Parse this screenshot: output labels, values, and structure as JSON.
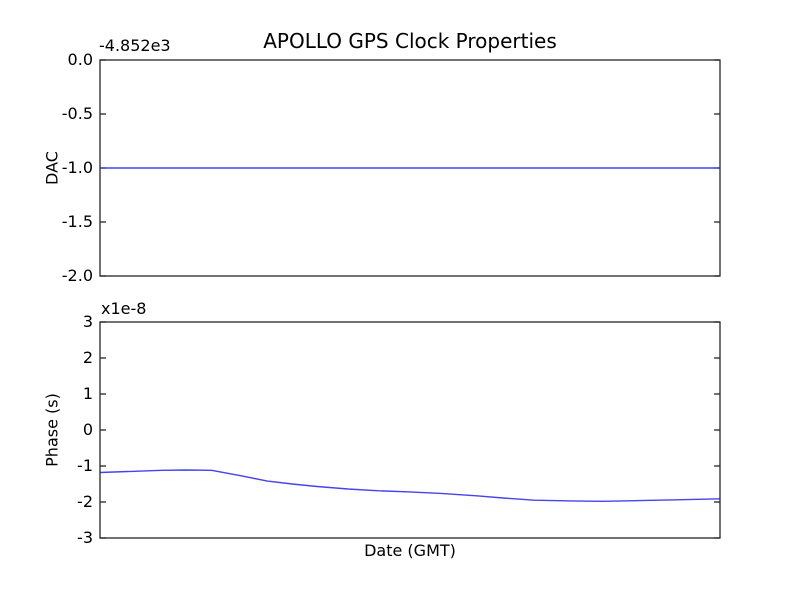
{
  "figure": {
    "background_color": "#ffffff",
    "axis_color": "#262626",
    "text_color": "#000000",
    "line_color": "#4444ee"
  },
  "chart_data": [
    {
      "type": "line",
      "title": "APOLLO GPS Clock Properties",
      "xlabel": "",
      "ylabel": "DAC",
      "offset_text": "-4.852e3",
      "ylim": [
        -2.0,
        0.0
      ],
      "yticks": [
        0.0,
        -0.5,
        -1.0,
        -1.5,
        -2.0
      ],
      "ytick_labels": [
        "0.0",
        "-0.5",
        "-1.0",
        "-1.5",
        "-2.0"
      ],
      "xlim": [
        0,
        1
      ],
      "xticks": [],
      "grid": false,
      "legend": false,
      "series": [
        {
          "name": "DAC",
          "color": "#4444ee",
          "x": [
            0,
            1
          ],
          "y": [
            -1.0,
            -1.0
          ]
        }
      ]
    },
    {
      "type": "line",
      "title": "",
      "xlabel": "Date (GMT)",
      "ylabel": "Phase (s)",
      "offset_text": "x1e-8",
      "ylim": [
        -3,
        3
      ],
      "yticks": [
        3,
        2,
        1,
        0,
        -1,
        -2,
        -3
      ],
      "ytick_labels": [
        "3",
        "2",
        "1",
        "0",
        "-1",
        "-2",
        "-3"
      ],
      "xlim": [
        0,
        1
      ],
      "xticks": [],
      "grid": false,
      "legend": false,
      "series": [
        {
          "name": "Phase",
          "color": "#4444ee",
          "x": [
            0,
            0.05,
            0.1,
            0.14,
            0.18,
            0.23,
            0.27,
            0.31,
            0.35,
            0.4,
            0.45,
            0.5,
            0.55,
            0.61,
            0.65,
            0.7,
            0.76,
            0.81,
            0.87,
            0.93,
            1.0
          ],
          "y": [
            -1.18,
            -1.15,
            -1.12,
            -1.11,
            -1.12,
            -1.28,
            -1.42,
            -1.5,
            -1.57,
            -1.64,
            -1.69,
            -1.72,
            -1.76,
            -1.83,
            -1.89,
            -1.95,
            -1.97,
            -1.98,
            -1.96,
            -1.94,
            -1.91
          ]
        }
      ]
    }
  ]
}
